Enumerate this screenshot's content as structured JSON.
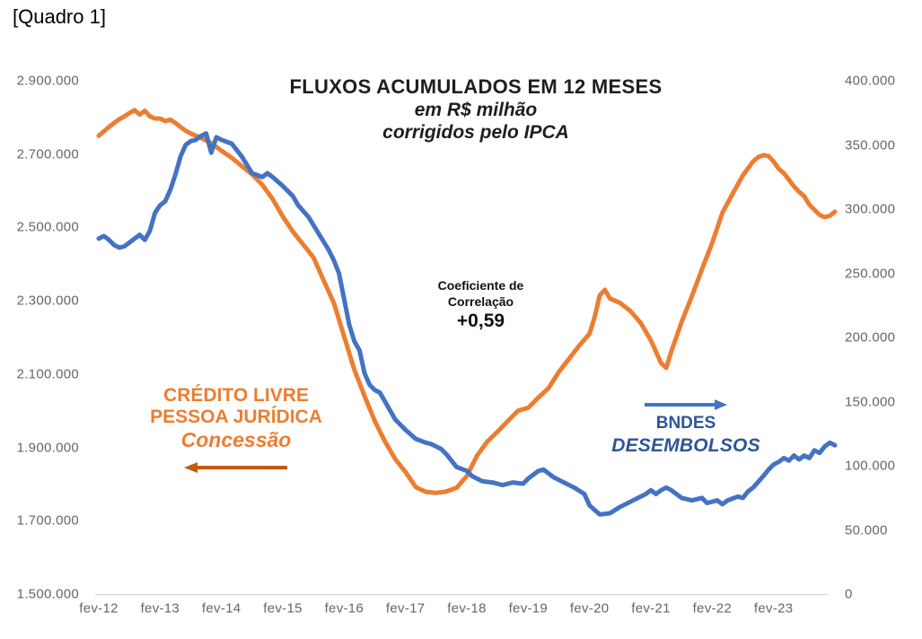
{
  "page": {
    "title": "[Quadro 1]"
  },
  "chart_data": {
    "type": "line",
    "title": "FLUXOS ACUMULADOS EM 12 MESES",
    "subtitle_lines": [
      "em R$ milhão",
      "corrigidos pelo IPCA"
    ],
    "annotation": {
      "line1": "Coeficiente de",
      "line2": "Correlação",
      "value": "+0,59"
    },
    "x_labels": [
      "fev-12",
      "fev-13",
      "fev-14",
      "fev-15",
      "fev-16",
      "fev-17",
      "fev-18",
      "fev-19",
      "fev-20",
      "fev-21",
      "fev-22",
      "fev-23"
    ],
    "left_axis": {
      "min": 1500000,
      "max": 2900000,
      "ticks": [
        "2.900.000",
        "2.700.000",
        "2.500.000",
        "2.300.000",
        "2.100.000",
        "1.900.000",
        "1.700.000",
        "1.500.000"
      ]
    },
    "right_axis": {
      "min": 0,
      "max": 400000,
      "ticks": [
        "400.000",
        "350.000",
        "300.000",
        "250.000",
        "200.000",
        "150.000",
        "100.000",
        "50.000",
        "0"
      ]
    },
    "legend_position": "inline-annotations",
    "grid": false,
    "series": [
      {
        "name": "CRÉDITO LIVRE PESSOA JURÍDICA — Concessão",
        "axis": "left",
        "color": "#ED7D31",
        "points": [
          [
            0,
            2750000
          ],
          [
            1,
            2762000
          ],
          [
            2,
            2774000
          ],
          [
            3,
            2785000
          ],
          [
            4,
            2795000
          ],
          [
            5,
            2803000
          ],
          [
            6,
            2812000
          ],
          [
            7,
            2820000
          ],
          [
            8,
            2808000
          ],
          [
            9,
            2818000
          ],
          [
            10,
            2803000
          ],
          [
            11,
            2797000
          ],
          [
            12,
            2797000
          ],
          [
            13,
            2790000
          ],
          [
            14,
            2794000
          ],
          [
            15,
            2785000
          ],
          [
            16,
            2774000
          ],
          [
            17,
            2764000
          ],
          [
            18,
            2756000
          ],
          [
            20,
            2744000
          ],
          [
            22,
            2730000
          ],
          [
            24,
            2709000
          ],
          [
            26,
            2690000
          ],
          [
            28,
            2667000
          ],
          [
            30,
            2645000
          ],
          [
            32,
            2616000
          ],
          [
            34,
            2578000
          ],
          [
            36,
            2530000
          ],
          [
            38,
            2488000
          ],
          [
            40,
            2453000
          ],
          [
            42,
            2418000
          ],
          [
            44,
            2355000
          ],
          [
            46,
            2294000
          ],
          [
            48,
            2203000
          ],
          [
            50,
            2112000
          ],
          [
            52,
            2040000
          ],
          [
            54,
            1972000
          ],
          [
            56,
            1916000
          ],
          [
            58,
            1868000
          ],
          [
            60,
            1833000
          ],
          [
            62,
            1792000
          ],
          [
            63,
            1785000
          ],
          [
            64,
            1779000
          ],
          [
            66,
            1776000
          ],
          [
            68,
            1780000
          ],
          [
            70,
            1790000
          ],
          [
            72,
            1822000
          ],
          [
            74,
            1878000
          ],
          [
            76,
            1916000
          ],
          [
            78,
            1943000
          ],
          [
            80,
            1972000
          ],
          [
            82,
            2000000
          ],
          [
            84,
            2008000
          ],
          [
            86,
            2036000
          ],
          [
            88,
            2062000
          ],
          [
            90,
            2106000
          ],
          [
            92,
            2142000
          ],
          [
            94,
            2178000
          ],
          [
            96,
            2210000
          ],
          [
            97,
            2256000
          ],
          [
            98,
            2315000
          ],
          [
            99,
            2330000
          ],
          [
            100,
            2306000
          ],
          [
            102,
            2294000
          ],
          [
            104,
            2272000
          ],
          [
            106,
            2240000
          ],
          [
            108,
            2192000
          ],
          [
            110,
            2130000
          ],
          [
            111,
            2117000
          ],
          [
            112,
            2162000
          ],
          [
            114,
            2242000
          ],
          [
            116,
            2312000
          ],
          [
            118,
            2386000
          ],
          [
            120,
            2458000
          ],
          [
            122,
            2540000
          ],
          [
            124,
            2592000
          ],
          [
            126,
            2642000
          ],
          [
            128,
            2680000
          ],
          [
            129,
            2692000
          ],
          [
            130,
            2697000
          ],
          [
            131,
            2695000
          ],
          [
            132,
            2680000
          ],
          [
            133,
            2660000
          ],
          [
            134,
            2648000
          ],
          [
            135,
            2630000
          ],
          [
            136,
            2612000
          ],
          [
            137,
            2597000
          ],
          [
            138,
            2585000
          ],
          [
            139,
            2562000
          ],
          [
            140,
            2548000
          ],
          [
            141,
            2534000
          ],
          [
            142,
            2528000
          ],
          [
            143,
            2532000
          ],
          [
            144,
            2543000
          ]
        ]
      },
      {
        "name": "BNDES DESEMBOLSOS",
        "axis": "right",
        "color": "#4472C4",
        "points": [
          [
            0,
            277000
          ],
          [
            1,
            279000
          ],
          [
            2,
            276000
          ],
          [
            3,
            272000
          ],
          [
            4,
            270000
          ],
          [
            5,
            271000
          ],
          [
            6,
            274000
          ],
          [
            7,
            277000
          ],
          [
            8,
            280000
          ],
          [
            9,
            276000
          ],
          [
            10,
            283000
          ],
          [
            11,
            297000
          ],
          [
            12,
            303000
          ],
          [
            13,
            306000
          ],
          [
            14,
            315000
          ],
          [
            15,
            327000
          ],
          [
            16,
            341000
          ],
          [
            17,
            350000
          ],
          [
            18,
            353000
          ],
          [
            19,
            354000
          ],
          [
            20,
            357000
          ],
          [
            21,
            359000
          ],
          [
            22,
            344000
          ],
          [
            23,
            356000
          ],
          [
            24,
            354000
          ],
          [
            26,
            351000
          ],
          [
            28,
            341000
          ],
          [
            30,
            328000
          ],
          [
            32,
            325000
          ],
          [
            33,
            328000
          ],
          [
            34,
            325000
          ],
          [
            36,
            318000
          ],
          [
            38,
            310000
          ],
          [
            39,
            303000
          ],
          [
            41,
            294000
          ],
          [
            43,
            281000
          ],
          [
            45,
            268000
          ],
          [
            46,
            260000
          ],
          [
            47,
            250000
          ],
          [
            48,
            230000
          ],
          [
            49,
            210000
          ],
          [
            50,
            197000
          ],
          [
            51,
            190000
          ],
          [
            52,
            172000
          ],
          [
            53,
            163000
          ],
          [
            54,
            159000
          ],
          [
            55,
            157000
          ],
          [
            56,
            150000
          ],
          [
            58,
            136000
          ],
          [
            60,
            128000
          ],
          [
            62,
            121000
          ],
          [
            64,
            118000
          ],
          [
            65,
            117000
          ],
          [
            67,
            113000
          ],
          [
            68,
            109000
          ],
          [
            70,
            99000
          ],
          [
            72,
            96000
          ],
          [
            73,
            92000
          ],
          [
            75,
            88000
          ],
          [
            77,
            87000
          ],
          [
            79,
            85000
          ],
          [
            81,
            87000
          ],
          [
            83,
            86000
          ],
          [
            84,
            90000
          ],
          [
            86,
            96000
          ],
          [
            87,
            97000
          ],
          [
            89,
            91000
          ],
          [
            91,
            87000
          ],
          [
            93,
            83000
          ],
          [
            95,
            78000
          ],
          [
            96,
            69000
          ],
          [
            98,
            62000
          ],
          [
            100,
            63000
          ],
          [
            102,
            68000
          ],
          [
            105,
            74000
          ],
          [
            107,
            78000
          ],
          [
            108,
            81000
          ],
          [
            109,
            78000
          ],
          [
            110,
            81000
          ],
          [
            111,
            83000
          ],
          [
            112,
            81000
          ],
          [
            114,
            75000
          ],
          [
            116,
            73000
          ],
          [
            118,
            75000
          ],
          [
            119,
            71000
          ],
          [
            121,
            73000
          ],
          [
            122,
            70000
          ],
          [
            123,
            73000
          ],
          [
            125,
            76000
          ],
          [
            126,
            75000
          ],
          [
            127,
            80000
          ],
          [
            128,
            83000
          ],
          [
            130,
            92000
          ],
          [
            131,
            97000
          ],
          [
            132,
            101000
          ],
          [
            133,
            103000
          ],
          [
            134,
            106000
          ],
          [
            135,
            104000
          ],
          [
            136,
            108000
          ],
          [
            137,
            105000
          ],
          [
            138,
            108000
          ],
          [
            139,
            106000
          ],
          [
            140,
            112000
          ],
          [
            141,
            110000
          ],
          [
            142,
            115000
          ],
          [
            143,
            118000
          ],
          [
            144,
            116000
          ]
        ]
      }
    ],
    "labels": {
      "credito": {
        "line1": "CRÉDITO LIVRE",
        "line2": "PESSOA JURÍDICA",
        "line3": "Concessão",
        "color": "#ED7D31",
        "arrow_color": "#C55A11"
      },
      "bndes": {
        "line1": "BNDES",
        "line2": "DESEMBOLSOS",
        "color": "#2E5597",
        "arrow_color": "#4472C4"
      }
    }
  }
}
